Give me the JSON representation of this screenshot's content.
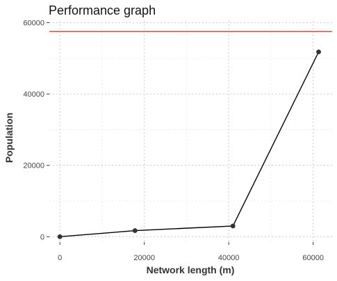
{
  "chart_data": {
    "type": "line",
    "title": "Performance graph",
    "xlabel": "Network length (m)",
    "ylabel": "Population",
    "xlim": [
      -2500,
      64500
    ],
    "ylim": [
      -1500,
      60500
    ],
    "x_ticks": [
      0,
      20000,
      40000,
      60000
    ],
    "y_ticks": [
      0,
      20000,
      40000,
      60000
    ],
    "grid": true,
    "points": [
      {
        "x": 0,
        "y": 0
      },
      {
        "x": 17800,
        "y": 1700
      },
      {
        "x": 41000,
        "y": 3000
      },
      {
        "x": 61300,
        "y": 51800
      }
    ],
    "reference_line": {
      "y": 57500,
      "color": "#e8413a"
    },
    "line_color": "#000000",
    "point_color": "#333333"
  }
}
